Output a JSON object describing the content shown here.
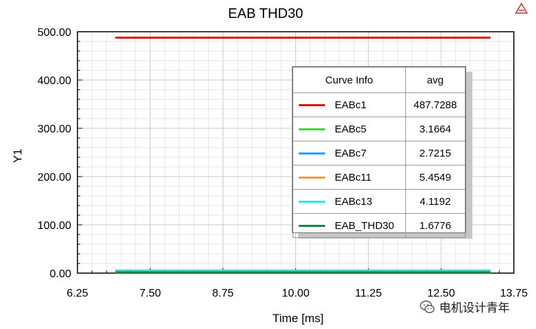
{
  "chart_data": {
    "type": "line",
    "title": "EAB THD30",
    "xlabel": "Time [ms]",
    "ylabel": "Y1",
    "xlim": [
      6.25,
      13.75
    ],
    "ylim": [
      0,
      500
    ],
    "xticks": [
      "6.25",
      "7.50",
      "8.75",
      "10.00",
      "11.25",
      "12.50",
      "13.75"
    ],
    "yticks": [
      "0.00",
      "100.00",
      "200.00",
      "300.00",
      "400.00",
      "500.00"
    ],
    "grid": true,
    "legend_position": "top-right",
    "legend_header": [
      "Curve Info",
      "avg"
    ],
    "x": [
      6.9,
      13.35
    ],
    "series": [
      {
        "name": "EABc1",
        "avg": "487.7288",
        "color": "#e01010",
        "values": [
          487.7288,
          487.7288
        ]
      },
      {
        "name": "EABc5",
        "avg": "3.1664",
        "color": "#33dd33",
        "values": [
          3.1664,
          3.1664
        ]
      },
      {
        "name": "EABc7",
        "avg": "2.7215",
        "color": "#1aa3ff",
        "values": [
          2.7215,
          2.7215
        ]
      },
      {
        "name": "EABc11",
        "avg": "5.4549",
        "color": "#f39c33",
        "values": [
          5.4549,
          5.4549
        ]
      },
      {
        "name": "EABc13",
        "avg": "4.1192",
        "color": "#22e8f0",
        "values": [
          4.1192,
          4.1192
        ]
      },
      {
        "name": "EAB_THD30",
        "avg": "1.6776",
        "color": "#118844",
        "values": [
          1.6776,
          1.6776
        ]
      }
    ]
  },
  "watermark": {
    "text": "电机设计青年",
    "icon": "wechat-icon"
  },
  "corner_logo": {
    "icon": "ansys-logo-icon"
  }
}
